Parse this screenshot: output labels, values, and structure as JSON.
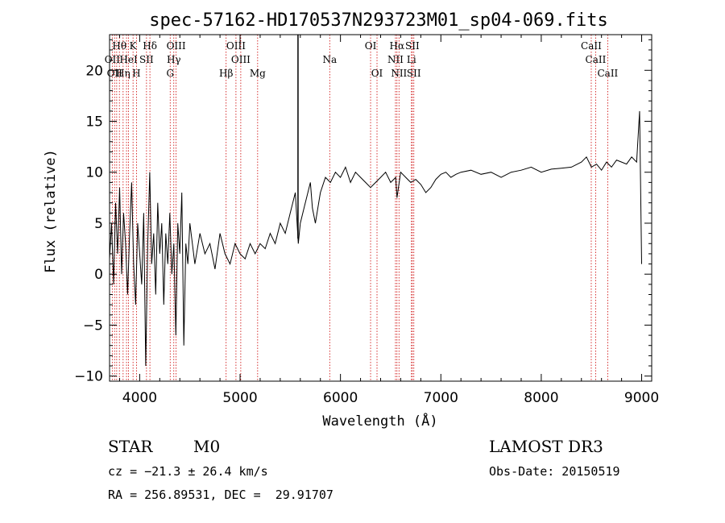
{
  "chart_data": {
    "type": "line",
    "title": "spec-57162-HD170537N293723M01_sp04-069.fits",
    "xlabel": "Wavelength (Å)",
    "ylabel": "Flux (relative)",
    "xlim": [
      3700,
      9100
    ],
    "ylim": [
      -10.5,
      23.5
    ],
    "x_ticks": [
      4000,
      5000,
      6000,
      7000,
      8000,
      9000
    ],
    "x_tick_labels": [
      "4000",
      "5000",
      "6000",
      "7000",
      "8000",
      "9000"
    ],
    "y_ticks": [
      -10,
      -5,
      0,
      5,
      10,
      15,
      20
    ],
    "y_tick_labels": [
      "−10",
      "−5",
      "0",
      "5",
      "10",
      "15",
      "20"
    ],
    "grid": false,
    "series": [
      {
        "x": [
          3700,
          3720,
          3740,
          3760,
          3780,
          3800,
          3820,
          3840,
          3860,
          3880,
          3900,
          3920,
          3940,
          3960,
          3980,
          4000,
          4020,
          4040,
          4060,
          4080,
          4100,
          4120,
          4140,
          4160,
          4180,
          4200,
          4220,
          4240,
          4260,
          4280,
          4300,
          4320,
          4340,
          4360,
          4380,
          4400,
          4420,
          4440,
          4460,
          4480,
          4500,
          4550,
          4600,
          4650,
          4700,
          4750,
          4800,
          4850,
          4900,
          4950,
          5000,
          5050,
          5100,
          5150,
          5200,
          5250,
          5300,
          5350,
          5400,
          5450,
          5500,
          5550,
          5580,
          5600,
          5650,
          5700,
          5720,
          5750,
          5800,
          5850,
          5900,
          5950,
          6000,
          6050,
          6100,
          6150,
          6200,
          6250,
          6300,
          6350,
          6400,
          6450,
          6500,
          6550,
          6563,
          6600,
          6650,
          6700,
          6750,
          6800,
          6850,
          6900,
          6950,
          7000,
          7050,
          7100,
          7150,
          7200,
          7300,
          7400,
          7500,
          7600,
          7700,
          7800,
          7900,
          8000,
          8100,
          8200,
          8300,
          8400,
          8450,
          8500,
          8550,
          8600,
          8650,
          8700,
          8750,
          8800,
          8850,
          8900,
          8950,
          8980,
          9000
        ],
        "y": [
          1.5,
          5,
          -1,
          7,
          2,
          8.5,
          0,
          6,
          3,
          -2,
          4,
          9,
          1,
          -3,
          5,
          2,
          -1,
          6,
          -9,
          3,
          10,
          1,
          4,
          -2,
          7,
          2,
          5,
          -3,
          4,
          1,
          6,
          0,
          3,
          -6,
          5,
          2,
          8,
          -7,
          3,
          1,
          5,
          1,
          4,
          2,
          3,
          0.5,
          4,
          2,
          1,
          3,
          2,
          1.5,
          3,
          2,
          3,
          2.5,
          4,
          3,
          5,
          4,
          6,
          8,
          3,
          5,
          7,
          9,
          6.5,
          5,
          8,
          9.5,
          9,
          10,
          9.5,
          10.5,
          9,
          10,
          9.5,
          9,
          8.5,
          9,
          9.5,
          10,
          9,
          9.5,
          7.5,
          10,
          9.5,
          9,
          9.3,
          8.8,
          8,
          8.5,
          9.3,
          9.8,
          10,
          9.5,
          9.8,
          10,
          10.2,
          9.8,
          10,
          9.5,
          10,
          10.2,
          10.5,
          10,
          10.3,
          10.4,
          10.5,
          11,
          11.5,
          10.5,
          10.8,
          10.2,
          11,
          10.5,
          11.2,
          11,
          10.8,
          11.5,
          11,
          16,
          1
        ]
      }
    ],
    "reference_lines": [
      {
        "x": 3727
      },
      {
        "x": 3750
      },
      {
        "x": 3771
      },
      {
        "x": 3798
      },
      {
        "x": 3835
      },
      {
        "x": 3869
      },
      {
        "x": 3889
      },
      {
        "x": 3934
      },
      {
        "x": 3968
      },
      {
        "x": 4068
      },
      {
        "x": 4102
      },
      {
        "x": 4304
      },
      {
        "x": 4340
      },
      {
        "x": 4363
      },
      {
        "x": 4861
      },
      {
        "x": 4959
      },
      {
        "x": 5007
      },
      {
        "x": 5175
      },
      {
        "x": 5893
      },
      {
        "x": 6300
      },
      {
        "x": 6364
      },
      {
        "x": 6548
      },
      {
        "x": 6563
      },
      {
        "x": 6583
      },
      {
        "x": 6707
      },
      {
        "x": 6716
      },
      {
        "x": 6731
      },
      {
        "x": 8498
      },
      {
        "x": 8542
      },
      {
        "x": 8662
      }
    ],
    "line_labels": [
      {
        "text": "Hθ",
        "x": 3798,
        "row": 0
      },
      {
        "text": "K",
        "x": 3934,
        "row": 0
      },
      {
        "text": "Hδ",
        "x": 4102,
        "row": 0
      },
      {
        "text": "OIII",
        "x": 4363,
        "row": 0
      },
      {
        "text": "OIII",
        "x": 4959,
        "row": 0
      },
      {
        "text": "OI",
        "x": 6300,
        "row": 0
      },
      {
        "text": "Hα",
        "x": 6563,
        "row": 0
      },
      {
        "text": "SII",
        "x": 6716,
        "row": 0
      },
      {
        "text": "CaII",
        "x": 8498,
        "row": 0
      },
      {
        "text": "OII",
        "x": 3727,
        "row": 1
      },
      {
        "text": "HeI",
        "x": 3889,
        "row": 1
      },
      {
        "text": "SII",
        "x": 4068,
        "row": 1
      },
      {
        "text": "Hγ",
        "x": 4340,
        "row": 1
      },
      {
        "text": "OIII",
        "x": 5007,
        "row": 1
      },
      {
        "text": "Na",
        "x": 5893,
        "row": 1
      },
      {
        "text": "NII",
        "x": 6548,
        "row": 1
      },
      {
        "text": "Li",
        "x": 6707,
        "row": 1
      },
      {
        "text": "CaII",
        "x": 8542,
        "row": 1
      },
      {
        "text": "OII",
        "x": 3750,
        "row": 2
      },
      {
        "text": "Hη",
        "x": 3835,
        "row": 2
      },
      {
        "text": "H",
        "x": 3968,
        "row": 2
      },
      {
        "text": "G",
        "x": 4304,
        "row": 2
      },
      {
        "text": "Hβ",
        "x": 4861,
        "row": 2
      },
      {
        "text": "Mg",
        "x": 5175,
        "row": 2
      },
      {
        "text": "OI",
        "x": 6364,
        "row": 2
      },
      {
        "text": "NII",
        "x": 6583,
        "row": 2
      },
      {
        "text": "SII",
        "x": 6731,
        "row": 2
      },
      {
        "text": "CaII",
        "x": 8662,
        "row": 2
      }
    ],
    "marker_line_x": 5577
  },
  "info": {
    "object_class": "STAR",
    "subclass": "M0",
    "survey": "LAMOST DR3",
    "redshift": "cz = −21.3 ± 26.4 km/s",
    "obs_date": "Obs-Date: 20150519",
    "coords": "RA = 256.89531, DEC =  29.91707"
  },
  "colors": {
    "spectrum": "#000000",
    "reference_line": "#cc0000",
    "axis": "#000000",
    "background": "#ffffff"
  }
}
